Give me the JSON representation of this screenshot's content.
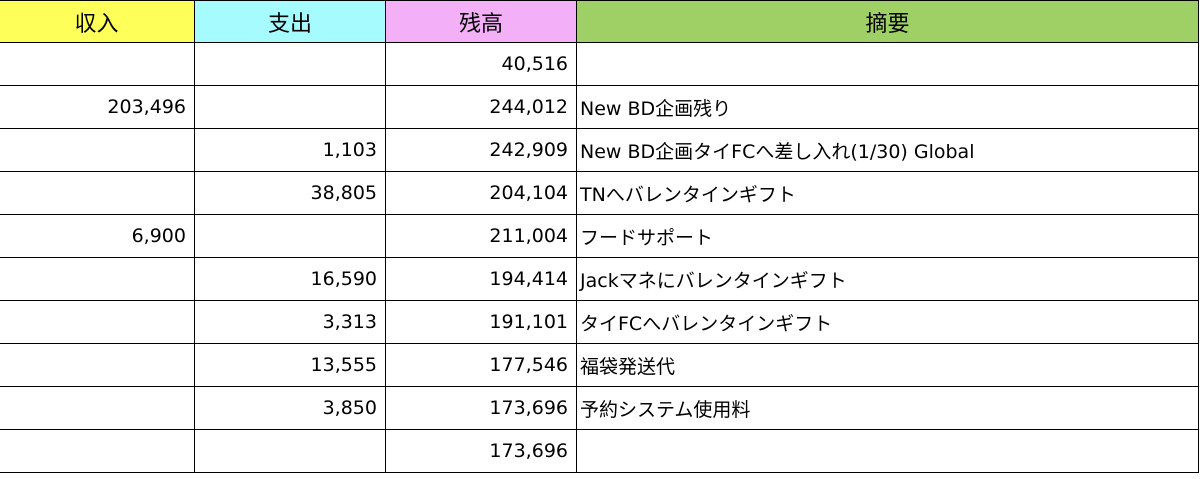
{
  "header": {
    "columns": [
      {
        "label": "収入",
        "color": "#ffff5a"
      },
      {
        "label": "支出",
        "color": "#a5fbfd"
      },
      {
        "label": "残高",
        "color": "#f3b0f7"
      },
      {
        "label": "摘要",
        "color": "#9fd066"
      }
    ]
  },
  "rows": [
    {
      "income": "",
      "expense": "",
      "balance": "40,516",
      "memo": ""
    },
    {
      "income": "203,496",
      "expense": "",
      "balance": "244,012",
      "memo": "New BD企画残り"
    },
    {
      "income": "",
      "expense": "1,103",
      "balance": "242,909",
      "memo": "New BD企画タイFCへ差し入れ(1/30) Global"
    },
    {
      "income": "",
      "expense": "38,805",
      "balance": "204,104",
      "memo": "TNへバレンタインギフト"
    },
    {
      "income": "6,900",
      "expense": "",
      "balance": "211,004",
      "memo": "フードサポート"
    },
    {
      "income": "",
      "expense": "16,590",
      "balance": "194,414",
      "memo": "Jackマネにバレンタインギフト"
    },
    {
      "income": "",
      "expense": "3,313",
      "balance": "191,101",
      "memo": "タイFCへバレンタインギフト"
    },
    {
      "income": "",
      "expense": "13,555",
      "balance": "177,546",
      "memo": "福袋発送代"
    },
    {
      "income": "",
      "expense": "3,850",
      "balance": "173,696",
      "memo": "予約システム使用料"
    },
    {
      "income": "",
      "expense": "",
      "balance": "173,696",
      "memo": ""
    }
  ]
}
